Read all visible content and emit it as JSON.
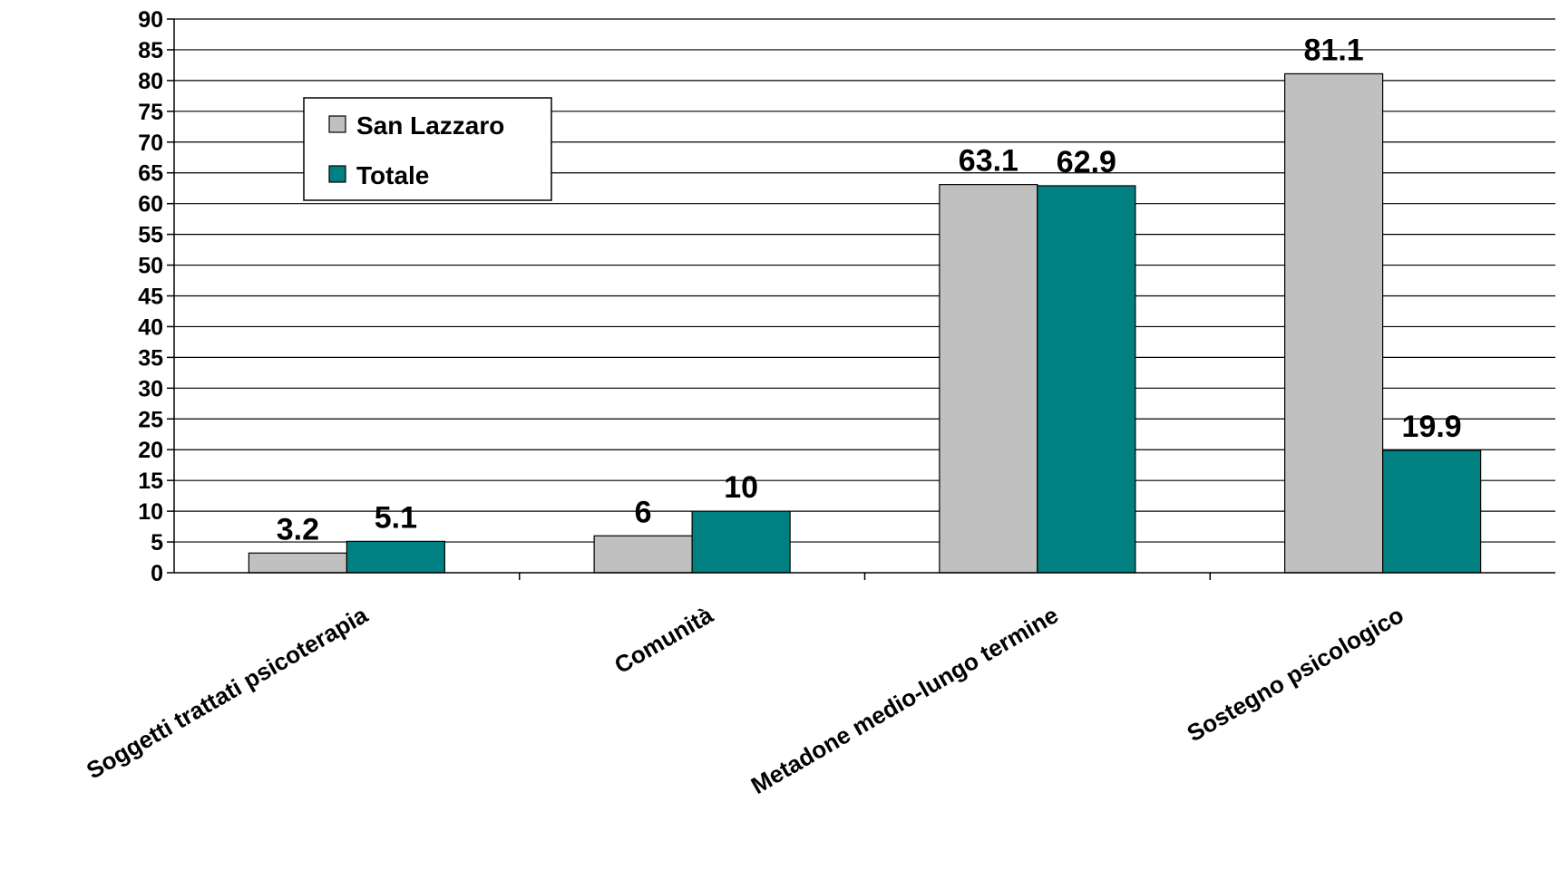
{
  "chart_data": {
    "type": "bar",
    "categories": [
      "Soggetti trattati psicoterapia",
      "Comunità",
      "Metadone medio-lungo termine",
      "Sostegno psicologico"
    ],
    "series": [
      {
        "name": "San Lazzaro",
        "values": [
          3.2,
          6,
          63.1,
          81.1
        ],
        "color": "#C0C0C0"
      },
      {
        "name": "Totale",
        "values": [
          5.1,
          10,
          62.9,
          19.9
        ],
        "color": "#008080"
      }
    ],
    "data_labels": [
      [
        "3.2",
        "6",
        "63.1",
        "81.1"
      ],
      [
        "5.1",
        "10",
        "62.9",
        "19.9"
      ]
    ],
    "ylim": [
      0,
      90
    ],
    "yticks": [
      "0",
      "5",
      "10",
      "15",
      "20",
      "25",
      "30",
      "35",
      "40",
      "45",
      "50",
      "55",
      "60",
      "65",
      "70",
      "75",
      "80",
      "85",
      "90"
    ],
    "grid": true,
    "legend_position": "top-left",
    "title": "",
    "xlabel": "",
    "ylabel": ""
  }
}
